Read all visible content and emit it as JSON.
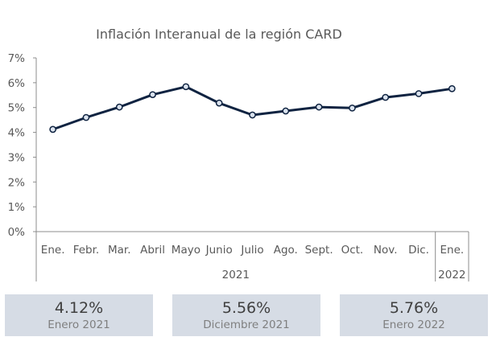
{
  "chart_data": {
    "type": "line",
    "title": "Inflación Interanual de la región CARD",
    "y_ticks": [
      "0%",
      "1%",
      "2%",
      "3%",
      "4%",
      "5%",
      "6%",
      "7%"
    ],
    "ylim": [
      0,
      7
    ],
    "categories": [
      "Ene.",
      "Febr.",
      "Mar.",
      "Abril",
      "Mayo",
      "Junio",
      "Julio",
      "Ago.",
      "Sept.",
      "Oct.",
      "Nov.",
      "Dic.",
      "Ene."
    ],
    "year_groups": [
      {
        "label": "2021",
        "start": 0,
        "end": 11
      },
      {
        "label": "2022",
        "start": 12,
        "end": 12
      }
    ],
    "series": [
      {
        "values": [
          4.12,
          4.6,
          5.02,
          5.52,
          5.84,
          5.18,
          4.7,
          4.86,
          5.02,
          4.98,
          5.41,
          5.56,
          5.76
        ]
      }
    ],
    "grid": false,
    "line_color": "#0f2341",
    "marker_fill": "#dbe3ee"
  },
  "cards": [
    {
      "value": "4.12%",
      "label": "Enero 2021"
    },
    {
      "value": "5.56%",
      "label": "Diciembre 2021"
    },
    {
      "value": "5.76%",
      "label": "Enero 2022"
    }
  ]
}
